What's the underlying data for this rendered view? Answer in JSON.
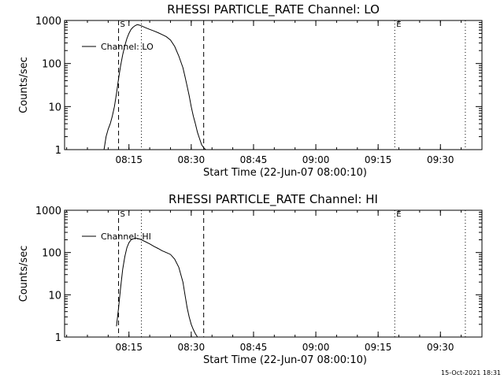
{
  "timestamp": "15-Oct-2021 18:31",
  "chart_data": [
    {
      "type": "line",
      "title": "RHESSI PARTICLE_RATE Channel: LO",
      "xlabel": "Start Time (22-Jun-07 08:00:10)",
      "ylabel": "Counts/sec",
      "yscale": "log",
      "ylim": [
        1,
        1000
      ],
      "xlim": [
        "07:59:30",
        "09:40:00"
      ],
      "x_ticks": [
        "08:15",
        "08:30",
        "08:45",
        "09:00",
        "09:15",
        "09:30"
      ],
      "y_ticks": [
        "1",
        "10",
        "100",
        "1000"
      ],
      "legend": {
        "text": "Channel: LO",
        "position": "top-left"
      },
      "markers": [
        {
          "label": "S",
          "time": "08:12:30",
          "style": "dashed"
        },
        {
          "label": "",
          "time": "08:33:00",
          "style": "dashed"
        },
        {
          "label": "",
          "time": "08:18:00",
          "style": "dotted"
        },
        {
          "label": "E",
          "time": "09:19:00",
          "style": "dotted"
        },
        {
          "label": "",
          "time": "09:36:00",
          "style": "dotted"
        }
      ],
      "series": [
        {
          "x": [
            "08:09:00",
            "08:09:30",
            "08:10:00",
            "08:10:30",
            "08:11:00",
            "08:11:30",
            "08:12:00",
            "08:12:30",
            "08:13:00",
            "08:13:30",
            "08:14:00",
            "08:14:30",
            "08:15:00",
            "08:15:30",
            "08:16:00",
            "08:16:30",
            "08:17:00",
            "08:17:30",
            "08:18:00",
            "08:19:00",
            "08:20:00",
            "08:21:00",
            "08:22:00",
            "08:23:00",
            "08:24:00",
            "08:25:00",
            "08:26:00",
            "08:27:00",
            "08:28:00",
            "08:28:30",
            "08:29:00",
            "08:29:30",
            "08:30:00",
            "08:30:30",
            "08:31:00",
            "08:31:30",
            "08:32:00",
            "08:32:30",
            "08:33:00",
            "08:33:30"
          ],
          "y": [
            1,
            2,
            3,
            4,
            6,
            10,
            20,
            45,
            90,
            160,
            260,
            380,
            500,
            620,
            700,
            760,
            800,
            780,
            750,
            680,
            620,
            570,
            520,
            470,
            420,
            350,
            250,
            150,
            80,
            50,
            30,
            18,
            10,
            6,
            4,
            2.5,
            1.8,
            1.3,
            1.1,
            1
          ]
        }
      ]
    },
    {
      "type": "line",
      "title": "RHESSI PARTICLE_RATE Channel: HI",
      "xlabel": "Start Time (22-Jun-07 08:00:10)",
      "ylabel": "Counts/sec",
      "yscale": "log",
      "ylim": [
        1,
        1000
      ],
      "xlim": [
        "07:59:30",
        "09:40:00"
      ],
      "x_ticks": [
        "08:15",
        "08:30",
        "08:45",
        "09:00",
        "09:15",
        "09:30"
      ],
      "y_ticks": [
        "1",
        "10",
        "100",
        "1000"
      ],
      "legend": {
        "text": "Channel: HI",
        "position": "top-left"
      },
      "markers": [
        {
          "label": "S",
          "time": "08:12:30",
          "style": "dashed"
        },
        {
          "label": "",
          "time": "08:33:00",
          "style": "dashed"
        },
        {
          "label": "",
          "time": "08:18:00",
          "style": "dotted"
        },
        {
          "label": "E",
          "time": "09:19:00",
          "style": "dotted"
        },
        {
          "label": "",
          "time": "09:36:00",
          "style": "dotted"
        }
      ],
      "series": [
        {
          "x": [
            "08:12:00",
            "08:12:30",
            "08:13:00",
            "08:13:30",
            "08:14:00",
            "08:14:30",
            "08:15:00",
            "08:15:30",
            "08:16:00",
            "08:16:30",
            "08:17:00",
            "08:17:30",
            "08:18:00",
            "08:19:00",
            "08:20:00",
            "08:21:00",
            "08:22:00",
            "08:23:00",
            "08:24:00",
            "08:25:00",
            "08:26:00",
            "08:27:00",
            "08:28:00",
            "08:28:30",
            "08:29:00",
            "08:29:30",
            "08:30:00",
            "08:30:30",
            "08:31:00",
            "08:31:30"
          ],
          "y": [
            1.8,
            5,
            15,
            40,
            80,
            130,
            170,
            200,
            210,
            220,
            215,
            210,
            200,
            180,
            160,
            140,
            125,
            110,
            100,
            90,
            70,
            45,
            20,
            10,
            5,
            3,
            2,
            1.5,
            1.2,
            1
          ]
        }
      ]
    }
  ]
}
